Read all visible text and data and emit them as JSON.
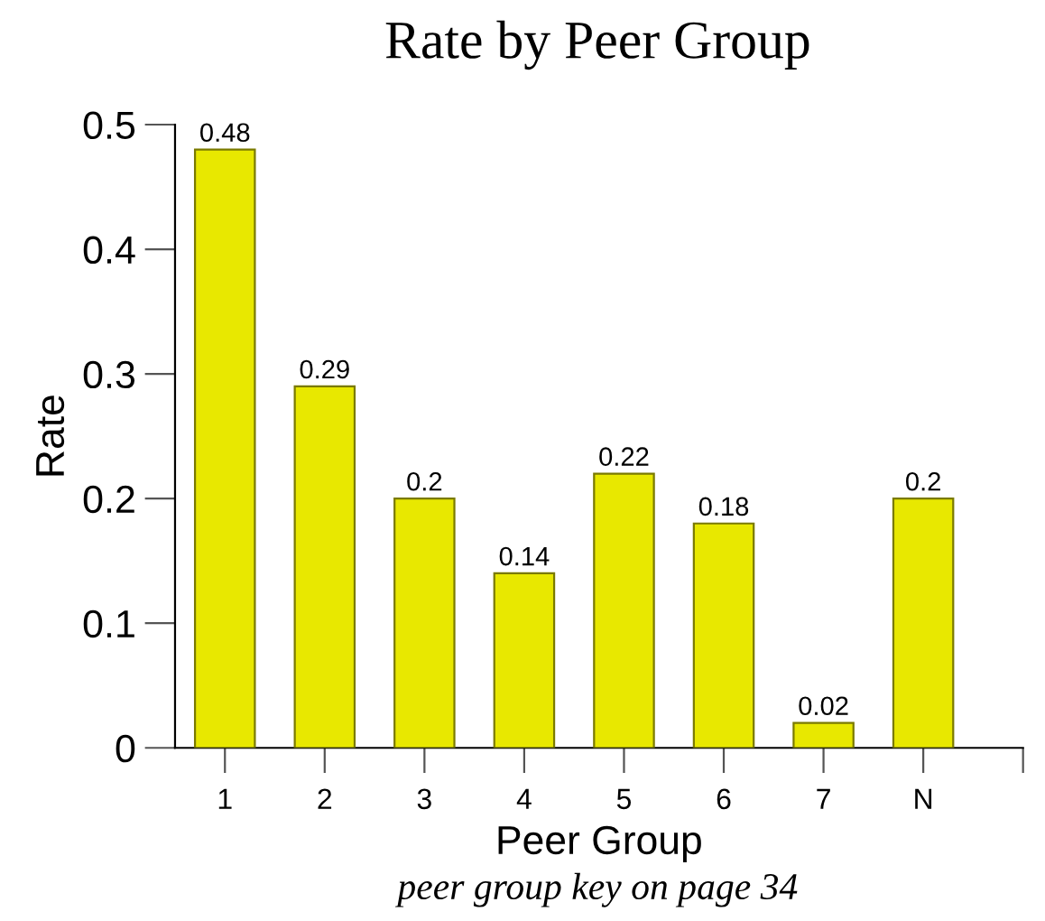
{
  "chart_data": {
    "type": "bar",
    "title": "Rate by Peer Group",
    "xlabel": "Peer Group",
    "ylabel": "Rate",
    "annotations": [
      "peer group key on page 34"
    ],
    "categories": [
      "1",
      "2",
      "3",
      "4",
      "5",
      "6",
      "7",
      "N",
      null
    ],
    "values": [
      0.48,
      0.29,
      0.2,
      0.14,
      0.22,
      0.18,
      0.02,
      0.2,
      null
    ],
    "color": "#e8e800",
    "ylim": [
      0,
      0.5
    ],
    "yticks": [
      0,
      0.1,
      0.2,
      0.3,
      0.4,
      0.5
    ],
    "data_labels": true,
    "grid": false,
    "legend": false
  }
}
